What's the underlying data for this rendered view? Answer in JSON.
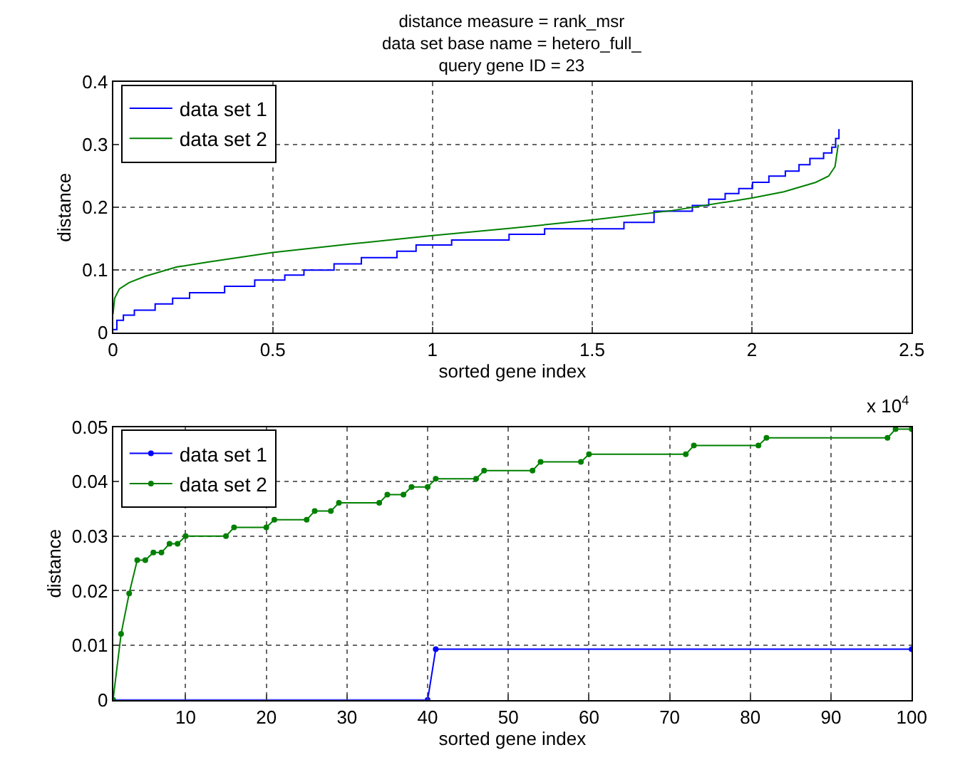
{
  "chart_data": [
    {
      "type": "step",
      "title": "distance measure = rank_msr\ndata set base name = hetero_full_\nquery gene ID = 23",
      "xlabel": "sorted gene index",
      "ylabel": "distance",
      "xlim": [
        0,
        2.5
      ],
      "xticks": [
        0,
        0.5,
        1,
        1.5,
        2,
        2.5
      ],
      "ylim": [
        0,
        0.4
      ],
      "yticks": [
        0,
        0.1,
        0.2,
        0.3,
        0.4
      ],
      "grid": true,
      "legend": "top left",
      "annotations": [
        "x 10$^{4}$"
      ],
      "series": [
        {
          "name": "data set 1",
          "color": "#0000ff",
          "type": "step",
          "x": [
            0,
            0.012,
            0.0325,
            0.0668,
            0.1318,
            0.1866,
            0.2397,
            0.3493,
            0.4435,
            0.5377,
            0.5976,
            0.6918,
            0.7774,
            0.8887,
            0.9486,
            1.0599,
            1.2397,
            1.351,
            1.5993,
            1.6935,
            1.8134,
            1.8647,
            1.9161,
            1.9589,
            2.0017,
            2.0531,
            2.1045,
            2.1473,
            2.1815,
            2.2243,
            2.25,
            2.262,
            2.2723
          ],
          "values": [
            0.005,
            0.02,
            0.028,
            0.036,
            0.046,
            0.055,
            0.064,
            0.074,
            0.084,
            0.092,
            0.1,
            0.11,
            0.12,
            0.13,
            0.14,
            0.148,
            0.157,
            0.166,
            0.176,
            0.194,
            0.203,
            0.213,
            0.222,
            0.23,
            0.24,
            0.25,
            0.258,
            0.268,
            0.278,
            0.287,
            0.296,
            0.31,
            0.325
          ]
        },
        {
          "name": "data set 2",
          "color": "#008000",
          "type": "line",
          "x": [
            0,
            0.005,
            0.02,
            0.05,
            0.1,
            0.2,
            0.3,
            0.5,
            0.75,
            1,
            1.25,
            1.5,
            1.75,
            2,
            2.1,
            2.2,
            2.24,
            2.26,
            2.27
          ],
          "values": [
            0.03,
            0.055,
            0.07,
            0.08,
            0.09,
            0.105,
            0.113,
            0.128,
            0.142,
            0.155,
            0.167,
            0.18,
            0.195,
            0.215,
            0.225,
            0.24,
            0.25,
            0.265,
            0.3
          ]
        }
      ]
    },
    {
      "type": "line",
      "xlabel": "sorted gene index",
      "ylabel": "distance",
      "marker": "circle",
      "xlim": [
        1,
        100
      ],
      "xticks": [
        10,
        20,
        30,
        40,
        50,
        60,
        70,
        80,
        90,
        100
      ],
      "ylim": [
        0,
        0.05
      ],
      "yticks": [
        0,
        0.01,
        0.02,
        0.03,
        0.04,
        0.05
      ],
      "grid": true,
      "legend": "top left",
      "series": [
        {
          "name": "data set 1",
          "color": "#0000ff",
          "x": [
            1,
            40,
            41,
            100
          ],
          "values": [
            0,
            0,
            0.0093,
            0.0093
          ]
        },
        {
          "name": "data set 2",
          "color": "#008000",
          "x": [
            1,
            2,
            3,
            4,
            5,
            6,
            7,
            8,
            9,
            10,
            15,
            16,
            20,
            21,
            25,
            26,
            28,
            29,
            34,
            35,
            37,
            38,
            40,
            41,
            46,
            47,
            53,
            54,
            59,
            60,
            72,
            73,
            81,
            82,
            97,
            98,
            100
          ],
          "values": [
            0,
            0.0121,
            0.0195,
            0.0256,
            0.0256,
            0.027,
            0.027,
            0.0286,
            0.0286,
            0.03,
            0.03,
            0.0316,
            0.0316,
            0.033,
            0.033,
            0.0346,
            0.0346,
            0.0361,
            0.0361,
            0.0376,
            0.0376,
            0.039,
            0.039,
            0.0405,
            0.0405,
            0.042,
            0.042,
            0.0436,
            0.0436,
            0.045,
            0.045,
            0.0466,
            0.0466,
            0.048,
            0.048,
            0.0496,
            0.0496
          ]
        }
      ]
    }
  ]
}
